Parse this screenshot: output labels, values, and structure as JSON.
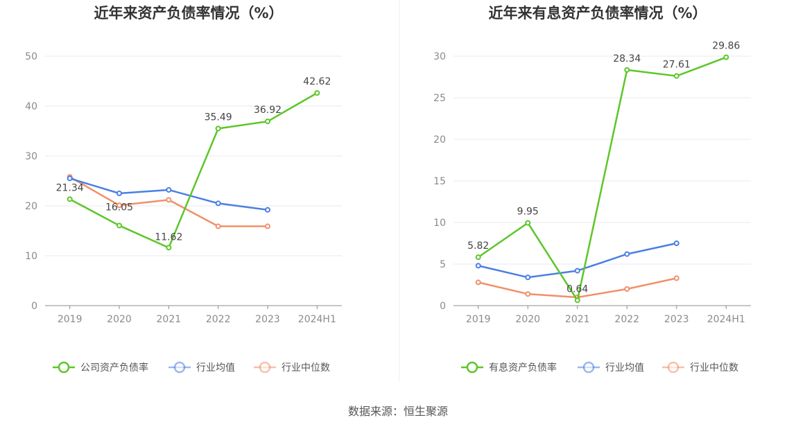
{
  "source": "数据来源：恒生聚源",
  "chart_data": [
    {
      "type": "line",
      "title": "近年来资产负债率情况（%）",
      "categories": [
        "2019",
        "2020",
        "2021",
        "2022",
        "2023",
        "2024H1"
      ],
      "ylim": [
        0,
        50
      ],
      "yticks": [
        0,
        10,
        20,
        30,
        40,
        50
      ],
      "grid": true,
      "legend": "bottom",
      "xlabel": "",
      "ylabel": "",
      "series": [
        {
          "name": "公司资产负债率",
          "color": "#5cc629",
          "values": [
            21.34,
            16.05,
            11.62,
            35.49,
            36.92,
            42.62
          ],
          "labels": [
            "21.34",
            "16.05",
            "11.62",
            "35.49",
            "36.92",
            "42.62"
          ]
        },
        {
          "name": "行业均值",
          "color": "#4a7fe2",
          "values": [
            25.5,
            22.5,
            23.2,
            20.5,
            19.2,
            null
          ]
        },
        {
          "name": "行业中位数",
          "color": "#f0906a",
          "values": [
            25.8,
            20.1,
            21.2,
            15.9,
            15.9,
            null
          ]
        }
      ]
    },
    {
      "type": "line",
      "title": "近年来有息资产负债率情况（%）",
      "categories": [
        "2019",
        "2020",
        "2021",
        "2022",
        "2023",
        "2024H1"
      ],
      "ylim": [
        0,
        30
      ],
      "yticks": [
        0,
        5,
        10,
        15,
        20,
        25,
        30
      ],
      "grid": true,
      "legend": "bottom",
      "xlabel": "",
      "ylabel": "",
      "series": [
        {
          "name": "有息资产负债率",
          "color": "#5cc629",
          "values": [
            5.82,
            9.95,
            0.64,
            28.34,
            27.61,
            29.86
          ],
          "labels": [
            "5.82",
            "9.95",
            "0.64",
            "28.34",
            "27.61",
            "29.86"
          ]
        },
        {
          "name": "行业均值",
          "color": "#4a7fe2",
          "values": [
            4.8,
            3.4,
            4.2,
            6.2,
            7.5,
            null
          ]
        },
        {
          "name": "行业中位数",
          "color": "#f0906a",
          "values": [
            2.8,
            1.4,
            1.0,
            2.0,
            3.3,
            null
          ]
        }
      ]
    }
  ]
}
